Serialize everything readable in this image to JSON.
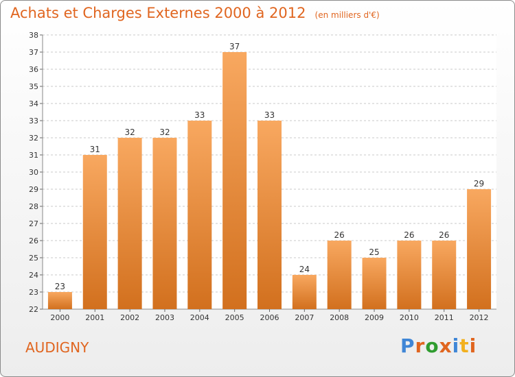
{
  "header": {
    "title": "Achats et Charges Externes 2000 à 2012",
    "subtitle": "(en milliers d'€)"
  },
  "footer": {
    "commune": "AUDIGNY",
    "logo_text": "Proxiti",
    "logo_colors": [
      "#3f86d6",
      "#e0651f",
      "#2f9c2f",
      "#e0651f",
      "#3f86d6",
      "#f2b01e",
      "#e0651f"
    ]
  },
  "colors": {
    "accent": "#e0651f",
    "bar_top": "#f8a860",
    "bar_bottom": "#d2701e"
  },
  "chart_data": {
    "type": "bar",
    "title": "Achats et Charges Externes 2000 à 2012",
    "subtitle": "(en milliers d'€)",
    "categories": [
      "2000",
      "2001",
      "2002",
      "2003",
      "2004",
      "2005",
      "2006",
      "2007",
      "2008",
      "2009",
      "2010",
      "2011",
      "2012"
    ],
    "values": [
      23,
      31,
      32,
      32,
      33,
      37,
      33,
      24,
      26,
      25,
      26,
      26,
      29
    ],
    "ylim": [
      22,
      38
    ],
    "yticks": [
      22,
      23,
      24,
      25,
      26,
      27,
      28,
      29,
      30,
      31,
      32,
      33,
      34,
      35,
      36,
      37,
      38
    ],
    "grid": "horizontal dashed",
    "data_labels": true
  }
}
